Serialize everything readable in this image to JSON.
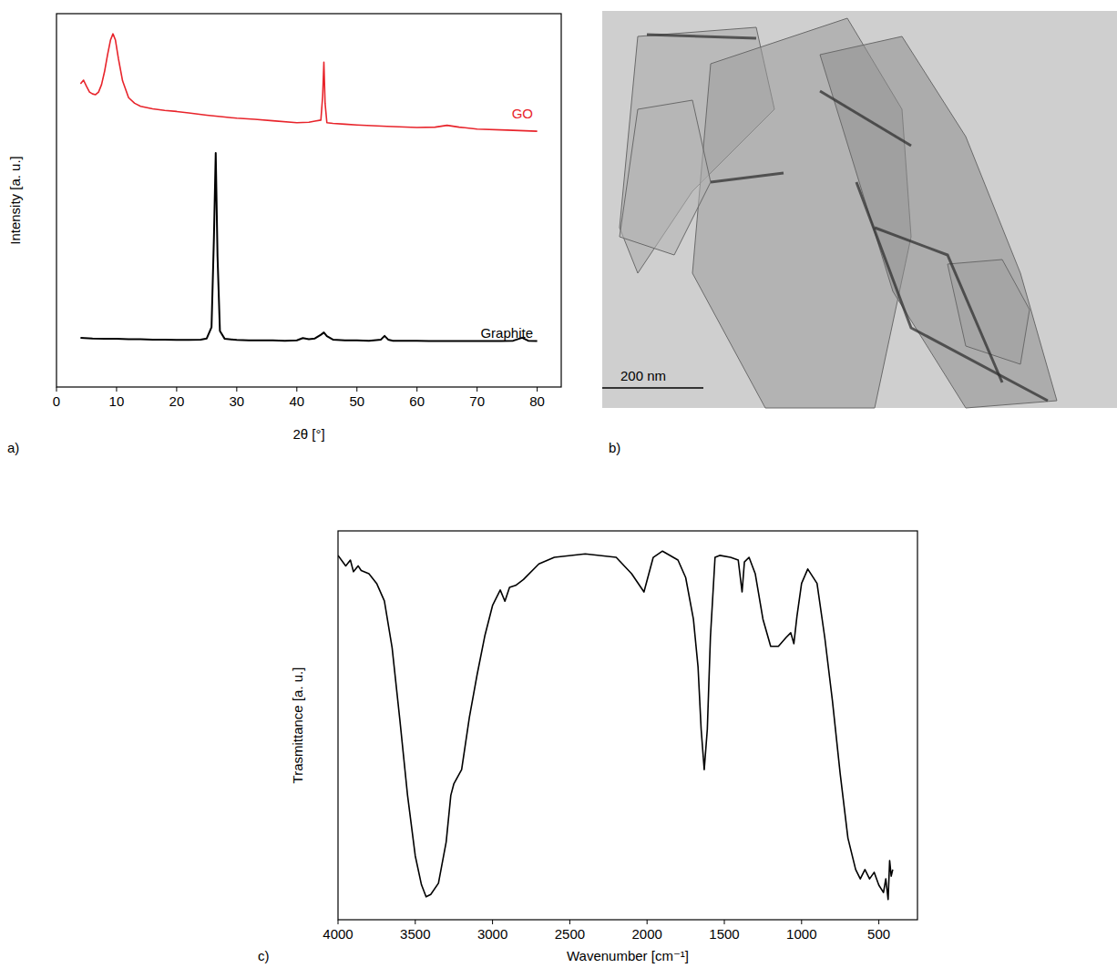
{
  "chart_data": [
    {
      "type": "line",
      "panel": "a)",
      "x_label": "2θ [°]",
      "y_label": "Intensity [a. u.]",
      "xlim": [
        0,
        84
      ],
      "xticks": [
        0,
        10,
        20,
        30,
        40,
        50,
        60,
        70,
        80
      ],
      "ylim": [
        0,
        100
      ],
      "tick_labels": "x",
      "series": [
        {
          "name": "GO",
          "color": "#e8242b",
          "x": [
            4,
            4.5,
            5,
            5.5,
            6,
            6.5,
            7,
            7.5,
            8,
            8.5,
            9,
            9.4,
            9.8,
            10.3,
            11,
            12,
            13,
            14,
            16,
            18,
            20,
            22,
            25,
            28,
            30,
            33,
            36,
            40,
            42,
            43,
            44,
            44.3,
            44.5,
            44.7,
            45,
            46,
            48,
            50,
            55,
            60,
            63,
            65,
            67,
            70,
            75,
            80
          ],
          "values": [
            81.2,
            82.2,
            80.5,
            79,
            78.5,
            78.3,
            79,
            81,
            84.5,
            89,
            93,
            94.6,
            93,
            88,
            82,
            77.5,
            76,
            75.2,
            74.5,
            74.1,
            73.8,
            73.4,
            72.8,
            72.3,
            72,
            71.7,
            71.3,
            70.8,
            70.9,
            71.2,
            71.5,
            78,
            87,
            76,
            70.8,
            70.6,
            70.4,
            70.2,
            69.8,
            69.5,
            69.6,
            70.1,
            69.6,
            69.1,
            68.8,
            68.5
          ]
        },
        {
          "name": "Graphite",
          "color": "#000000",
          "x": [
            4,
            6,
            8,
            10,
            12,
            14,
            16,
            18,
            20,
            22,
            24,
            25,
            25.8,
            26.2,
            26.5,
            26.8,
            27.2,
            28,
            30,
            32,
            34,
            36,
            38,
            40,
            41,
            42,
            43,
            44,
            44.5,
            45,
            46,
            48,
            50,
            52,
            54,
            54.6,
            55.2,
            56,
            58,
            60,
            62,
            64,
            66,
            68,
            70,
            72,
            74,
            76,
            77.5,
            78.5,
            80
          ],
          "values": [
            13.2,
            13.0,
            12.9,
            12.9,
            12.8,
            12.8,
            12.7,
            12.7,
            12.6,
            12.6,
            12.7,
            13.0,
            16,
            40,
            62.7,
            35,
            15,
            12.9,
            12.6,
            12.5,
            12.5,
            12.5,
            12.4,
            12.5,
            13.1,
            12.8,
            13.0,
            14.0,
            14.6,
            13.6,
            12.7,
            12.5,
            12.5,
            12.4,
            12.7,
            13.7,
            12.7,
            12.4,
            12.4,
            12.4,
            12.3,
            12.3,
            12.3,
            12.3,
            12.3,
            12.3,
            12.3,
            12.4,
            13.2,
            12.4,
            12.3
          ]
        }
      ]
    },
    {
      "type": "image",
      "panel": "b)",
      "annotations": [
        "200 nm"
      ]
    },
    {
      "type": "line",
      "panel": "c)",
      "x_label": "Wavenumber [cm⁻¹]",
      "y_label": "Trasmittance [a. u.]",
      "xlim": [
        4000,
        250
      ],
      "xticks": [
        4000,
        3500,
        3000,
        2500,
        2000,
        1500,
        1000,
        500
      ],
      "ylim": [
        0,
        100
      ],
      "tick_labels": "x",
      "series": [
        {
          "color": "#000000",
          "x": [
            4000,
            3950,
            3920,
            3900,
            3870,
            3850,
            3800,
            3750,
            3700,
            3650,
            3600,
            3550,
            3500,
            3460,
            3430,
            3400,
            3350,
            3300,
            3270,
            3250,
            3200,
            3150,
            3100,
            3050,
            3000,
            2950,
            2920,
            2890,
            2850,
            2800,
            2700,
            2600,
            2400,
            2200,
            2100,
            2020,
            1960,
            1900,
            1800,
            1750,
            1700,
            1670,
            1650,
            1630,
            1610,
            1590,
            1560,
            1530,
            1460,
            1410,
            1385,
            1370,
            1340,
            1300,
            1250,
            1200,
            1150,
            1100,
            1070,
            1050,
            1030,
            1000,
            960,
            900,
            850,
            800,
            750,
            700,
            650,
            620,
            590,
            560,
            530,
            500,
            470,
            455,
            440,
            430,
            420,
            410
          ],
          "values": [
            93.7,
            91,
            92.5,
            89.5,
            91,
            89.8,
            89,
            86.5,
            82,
            70,
            51.5,
            32,
            16.4,
            9,
            5.9,
            6.5,
            9.4,
            20,
            32,
            35,
            38.6,
            52,
            63,
            73,
            80.8,
            84.8,
            81.9,
            85.5,
            86,
            87.5,
            91.5,
            93.2,
            94.1,
            93.2,
            89,
            84.3,
            93.2,
            94.8,
            92.5,
            88,
            77.3,
            65,
            49,
            38.6,
            49,
            72.6,
            93.2,
            93.7,
            93.2,
            92.5,
            84.3,
            92,
            93.2,
            89,
            77.3,
            70.3,
            70.3,
            72.6,
            73.8,
            71,
            78,
            86.5,
            90.2,
            86.5,
            72.6,
            56.2,
            37.5,
            21,
            12.9,
            10.5,
            12.9,
            10.5,
            12.2,
            8.9,
            7,
            10.5,
            5.2,
            15.2,
            11.2,
            12.9
          ]
        }
      ]
    }
  ]
}
